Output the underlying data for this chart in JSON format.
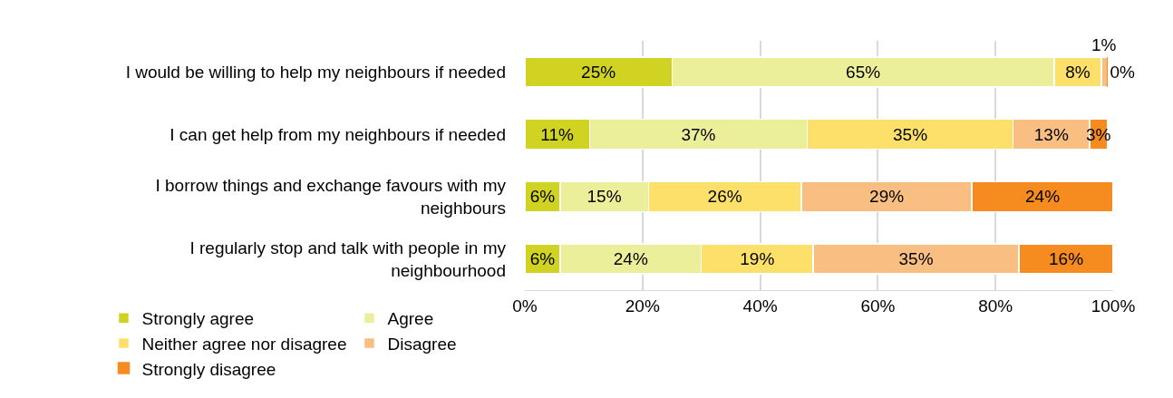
{
  "chart_data": {
    "type": "bar",
    "orientation": "horizontal",
    "stacked": true,
    "grid": "x",
    "legend": "bottom",
    "categories": [
      "I would be willing to help my neighbours if needed",
      "I can get help from my neighbours if needed",
      "I borrow things and exchange favours with my neighbours",
      "I regularly stop and talk with people in my neighbourhood"
    ],
    "series": [
      {
        "name": "Strongly agree",
        "color": "#d0d321",
        "values": [
          25,
          11,
          6,
          6
        ],
        "value_labels": [
          "25%",
          "11%",
          "6%",
          "6%"
        ]
      },
      {
        "name": "Agree",
        "color": "#ecef9a",
        "values": [
          65,
          37,
          15,
          24
        ],
        "value_labels": [
          "65%",
          "37%",
          "15%",
          "24%"
        ]
      },
      {
        "name": "Neither agree nor disagree",
        "color": "#fde06a",
        "values": [
          8,
          35,
          26,
          19
        ],
        "value_labels": [
          "8%",
          "35%",
          "26%",
          "19%"
        ]
      },
      {
        "name": "Disagree",
        "color": "#f9bf82",
        "values": [
          1,
          13,
          29,
          35
        ],
        "value_labels": [
          "1%",
          "13%",
          "29%",
          "35%"
        ]
      },
      {
        "name": "Strongly disagree",
        "color": "#f68c1f",
        "values": [
          0,
          3,
          24,
          16
        ],
        "value_labels": [
          "0%",
          "3%",
          "24%",
          "16%"
        ]
      }
    ],
    "xlim": [
      0,
      100
    ],
    "xticks": [
      {
        "value": 0,
        "label": "0%"
      },
      {
        "value": 20,
        "label": "20%"
      },
      {
        "value": 40,
        "label": "40%"
      },
      {
        "value": 60,
        "label": "60%"
      },
      {
        "value": 80,
        "label": "80%"
      },
      {
        "value": 100,
        "label": "100%"
      }
    ]
  }
}
